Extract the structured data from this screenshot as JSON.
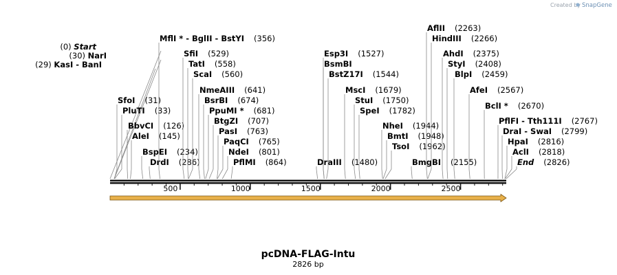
{
  "credit": {
    "prefix": "Created by",
    "brand": "SnapGene"
  },
  "plasmid": {
    "name": "pcDNA-FLAG-Intu",
    "length_label": "2826 bp",
    "length": 2826
  },
  "ruler_ticks": [
    {
      "pos": 500,
      "label": "500"
    },
    {
      "pos": 1000,
      "label": "1000"
    },
    {
      "pos": 1500,
      "label": "1500"
    },
    {
      "pos": 2000,
      "label": "2000"
    },
    {
      "pos": 2500,
      "label": "2500"
    }
  ],
  "features": [
    {
      "name": "ORF",
      "start": 0,
      "end": 2826,
      "direction": "forward",
      "color": "#e8b04a"
    }
  ],
  "sites": [
    {
      "pos": 0,
      "pos_label": "(0)",
      "name": "Start",
      "style": "italic",
      "side": "right"
    },
    {
      "pos": 29,
      "pos_label": "(29)",
      "name": "KasI  -  BanI",
      "side": "right"
    },
    {
      "pos": 30,
      "pos_label": "(30)",
      "name": "NarI",
      "side": "right"
    },
    {
      "pos": 31,
      "pos_label": "(31)",
      "name": "SfoI",
      "side": "left"
    },
    {
      "pos": 33,
      "pos_label": "(33)",
      "name": "PluTI",
      "side": "left"
    },
    {
      "pos": 126,
      "pos_label": "(126)",
      "name": "BbvCI",
      "side": "left"
    },
    {
      "pos": 145,
      "pos_label": "(145)",
      "name": "AleI",
      "side": "left"
    },
    {
      "pos": 234,
      "pos_label": "(234)",
      "name": "BspEI",
      "side": "left"
    },
    {
      "pos": 286,
      "pos_label": "(286)",
      "name": "DrdI",
      "side": "left"
    },
    {
      "pos": 356,
      "pos_label": "(356)",
      "name": "MflI *  -  BglII  -  BstYI",
      "side": "left"
    },
    {
      "pos": 529,
      "pos_label": "(529)",
      "name": "SfiI",
      "side": "left"
    },
    {
      "pos": 558,
      "pos_label": "(558)",
      "name": "TatI",
      "side": "left"
    },
    {
      "pos": 560,
      "pos_label": "(560)",
      "name": "ScaI",
      "side": "left"
    },
    {
      "pos": 641,
      "pos_label": "(641)",
      "name": "NmeAIII",
      "side": "left"
    },
    {
      "pos": 674,
      "pos_label": "(674)",
      "name": "BsrBI",
      "side": "left"
    },
    {
      "pos": 681,
      "pos_label": "(681)",
      "name": "PpuMI *",
      "side": "left"
    },
    {
      "pos": 707,
      "pos_label": "(707)",
      "name": "BtgZI",
      "side": "left"
    },
    {
      "pos": 763,
      "pos_label": "(763)",
      "name": "PasI",
      "side": "left"
    },
    {
      "pos": 765,
      "pos_label": "(765)",
      "name": "PaqCI",
      "side": "left"
    },
    {
      "pos": 801,
      "pos_label": "(801)",
      "name": "NdeI",
      "side": "left"
    },
    {
      "pos": 864,
      "pos_label": "(864)",
      "name": "PflMI",
      "side": "left"
    },
    {
      "pos": 1480,
      "pos_label": "(1480)",
      "name": "DraIII",
      "side": "left"
    },
    {
      "pos": 1527,
      "pos_label": "(1527)",
      "name": "Esp3I",
      "side": "left"
    },
    {
      "pos": 1527,
      "pos_label": "",
      "name": "BsmBI",
      "side": "left"
    },
    {
      "pos": 1544,
      "pos_label": "(1544)",
      "name": "BstZ17I",
      "side": "left"
    },
    {
      "pos": 1679,
      "pos_label": "(1679)",
      "name": "MscI",
      "side": "left"
    },
    {
      "pos": 1750,
      "pos_label": "(1750)",
      "name": "StuI",
      "side": "left"
    },
    {
      "pos": 1782,
      "pos_label": "(1782)",
      "name": "SpeI",
      "side": "left"
    },
    {
      "pos": 1944,
      "pos_label": "(1944)",
      "name": "NheI",
      "side": "left"
    },
    {
      "pos": 1948,
      "pos_label": "(1948)",
      "name": "BmtI",
      "side": "left"
    },
    {
      "pos": 1962,
      "pos_label": "(1962)",
      "name": "TsoI",
      "side": "left"
    },
    {
      "pos": 2155,
      "pos_label": "(2155)",
      "name": "BmgBI",
      "side": "left"
    },
    {
      "pos": 2263,
      "pos_label": "(2263)",
      "name": "AflII",
      "side": "left"
    },
    {
      "pos": 2266,
      "pos_label": "(2266)",
      "name": "HindIII",
      "side": "left"
    },
    {
      "pos": 2375,
      "pos_label": "(2375)",
      "name": "AhdI",
      "side": "left"
    },
    {
      "pos": 2408,
      "pos_label": "(2408)",
      "name": "StyI",
      "side": "left"
    },
    {
      "pos": 2459,
      "pos_label": "(2459)",
      "name": "BlpI",
      "side": "left"
    },
    {
      "pos": 2567,
      "pos_label": "(2567)",
      "name": "AfeI",
      "side": "left"
    },
    {
      "pos": 2670,
      "pos_label": "(2670)",
      "name": "BclI *",
      "side": "left"
    },
    {
      "pos": 2767,
      "pos_label": "(2767)",
      "name": "PflFI  -  Tth111I",
      "side": "left"
    },
    {
      "pos": 2799,
      "pos_label": "(2799)",
      "name": "DraI  -  SwaI",
      "side": "left"
    },
    {
      "pos": 2816,
      "pos_label": "(2816)",
      "name": "HpaI",
      "side": "left"
    },
    {
      "pos": 2818,
      "pos_label": "(2818)",
      "name": "AclI",
      "side": "left"
    },
    {
      "pos": 2826,
      "pos_label": "(2826)",
      "name": "End",
      "style": "italic",
      "side": "left"
    }
  ]
}
